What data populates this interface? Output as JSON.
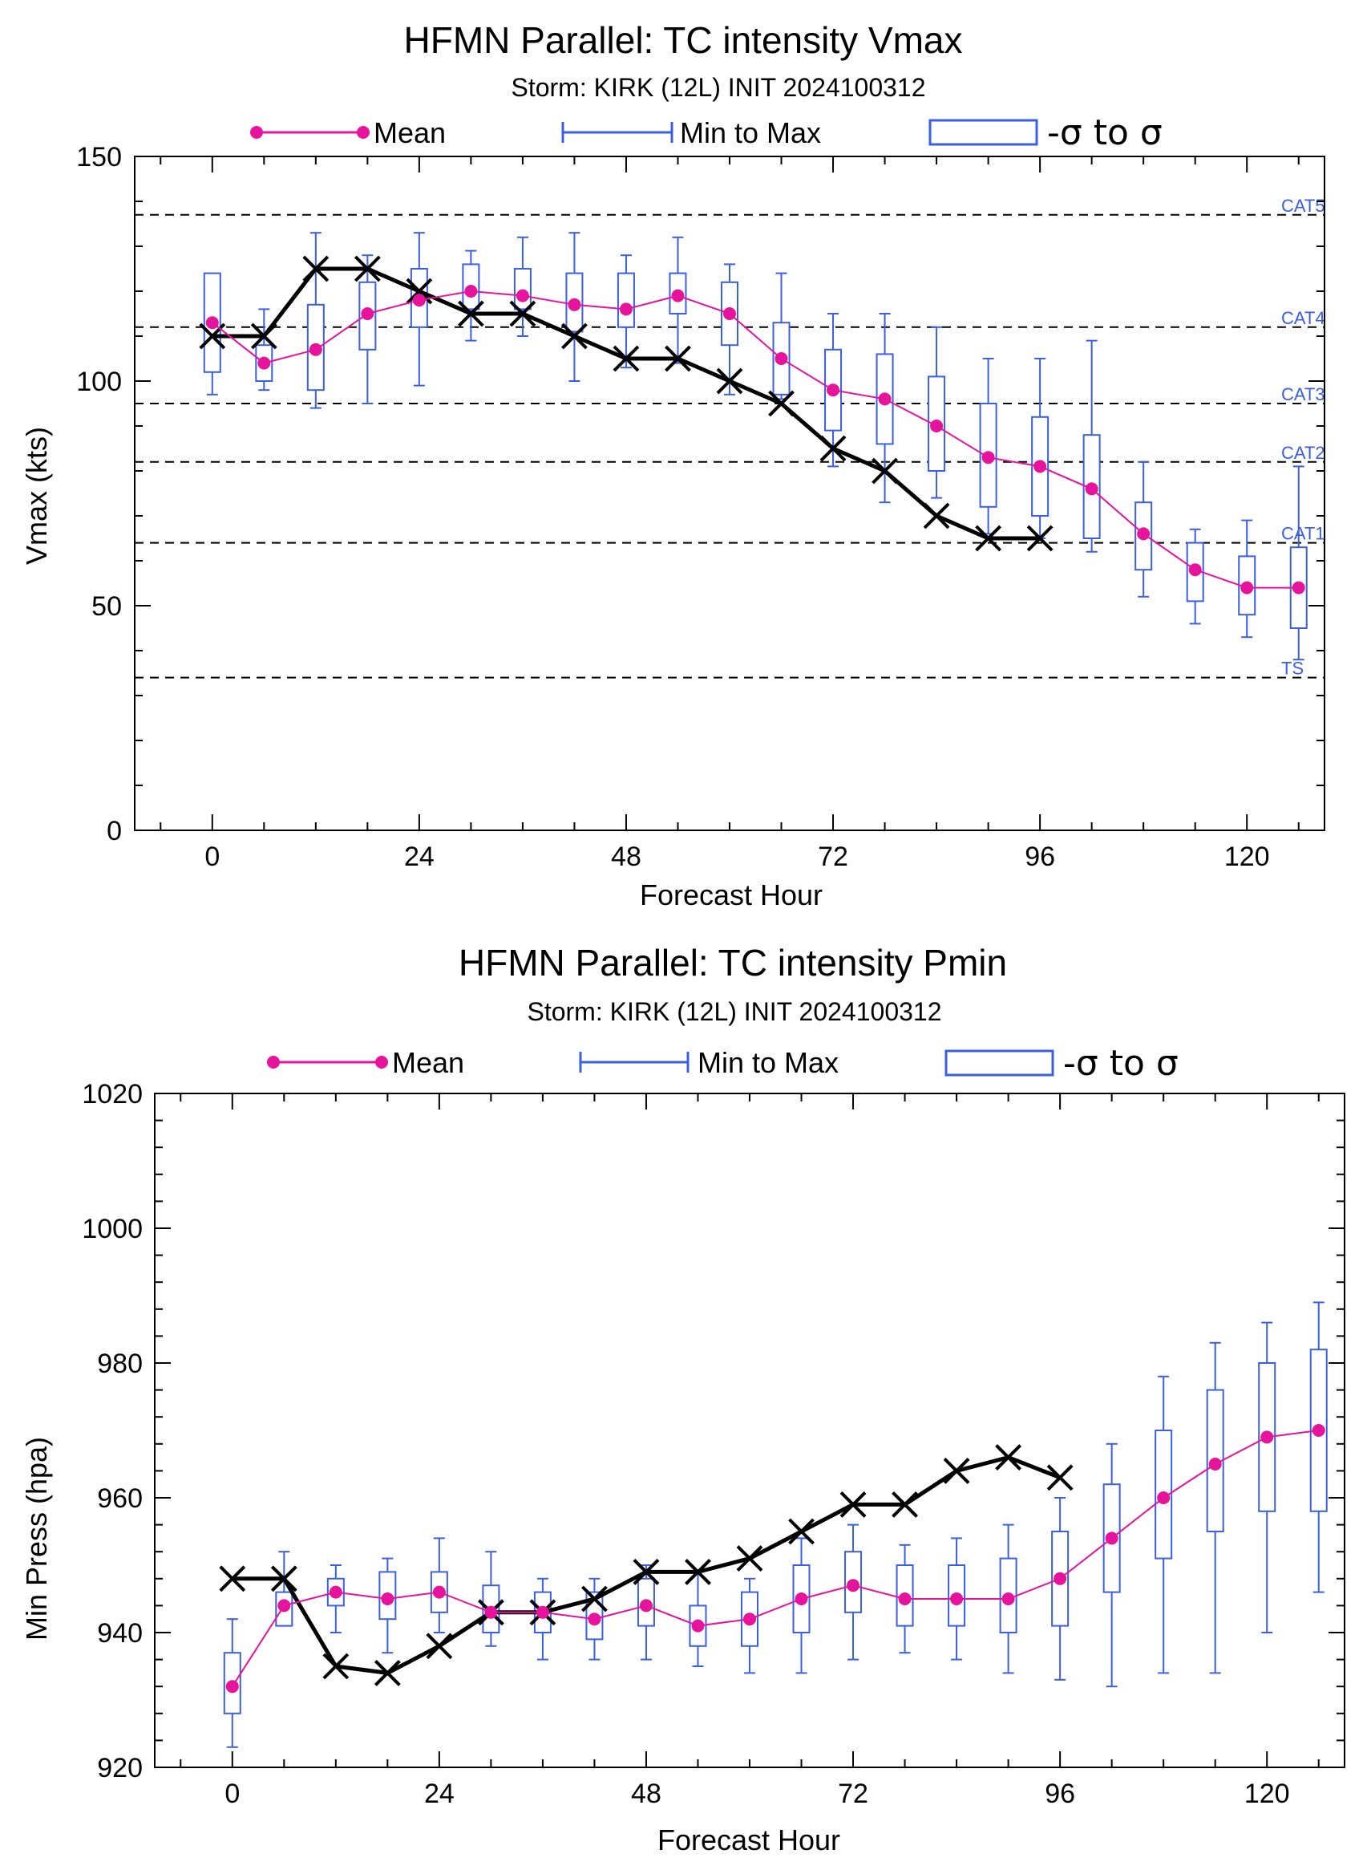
{
  "colors": {
    "mean": "#e6139c",
    "range": "#3a5fe5",
    "best_track": "#000000",
    "reference_lines": "#000000"
  },
  "legend": {
    "mean": "Mean",
    "range": "Min to Max",
    "sigma": "-σ to σ"
  },
  "chart_data": [
    {
      "type": "line",
      "title": "HFMN Parallel: TC intensity Vmax",
      "subtitle": "Storm: KIRK (12L) INIT 2024100312",
      "xlabel": "Forecast Hour",
      "ylabel": "Vmax (kts)",
      "xlim": [
        -9,
        129
      ],
      "ylim": [
        0,
        150
      ],
      "xticks": [
        0,
        24,
        48,
        72,
        96,
        120
      ],
      "yticks": [
        0,
        50,
        100,
        150
      ],
      "reference_lines": [
        {
          "label": "TS",
          "y": 34
        },
        {
          "label": "CAT1",
          "y": 64
        },
        {
          "label": "CAT2",
          "y": 82
        },
        {
          "label": "CAT3",
          "y": 95
        },
        {
          "label": "CAT4",
          "y": 112
        },
        {
          "label": "CAT5",
          "y": 137
        }
      ],
      "x": [
        0,
        6,
        12,
        18,
        24,
        30,
        36,
        42,
        48,
        54,
        60,
        66,
        72,
        78,
        84,
        90,
        96,
        102,
        108,
        114,
        120,
        126
      ],
      "series": [
        {
          "name": "Mean",
          "values": [
            113,
            104,
            107,
            115,
            118,
            120,
            119,
            117,
            116,
            119,
            115,
            105,
            98,
            96,
            90,
            83,
            81,
            76,
            66,
            58,
            54,
            54
          ]
        },
        {
          "name": "Min to Max",
          "min": [
            97,
            98,
            94,
            95,
            99,
            109,
            110,
            100,
            103,
            104,
            97,
            96,
            81,
            73,
            74,
            66,
            65,
            62,
            52,
            46,
            43,
            38
          ],
          "max": [
            122,
            116,
            133,
            128,
            133,
            129,
            132,
            133,
            128,
            132,
            126,
            124,
            115,
            115,
            112,
            105,
            105,
            109,
            82,
            67,
            69,
            81
          ]
        },
        {
          "name": "-σ to σ",
          "low": [
            102,
            100,
            98,
            107,
            112,
            116,
            116,
            111,
            112,
            115,
            108,
            97,
            89,
            86,
            80,
            72,
            70,
            65,
            58,
            51,
            48,
            45
          ],
          "high": [
            124,
            108,
            117,
            122,
            125,
            126,
            125,
            124,
            124,
            124,
            122,
            113,
            107,
            106,
            101,
            95,
            92,
            88,
            73,
            64,
            61,
            63
          ]
        }
      ],
      "best_track": {
        "x": [
          0,
          6,
          12,
          18,
          24,
          30,
          36,
          42,
          48,
          54,
          60,
          66,
          72,
          78,
          84,
          90,
          96
        ],
        "values": [
          110,
          110,
          125,
          125,
          120,
          115,
          115,
          110,
          105,
          105,
          100,
          95,
          85,
          80,
          70,
          65,
          65
        ]
      }
    },
    {
      "type": "line",
      "title": "HFMN Parallel: TC intensity Pmin",
      "subtitle": "Storm: KIRK (12L) INIT 2024100312",
      "xlabel": "Forecast Hour",
      "ylabel": "Min Press (hpa)",
      "xlim": [
        -9,
        129
      ],
      "ylim": [
        920,
        1020
      ],
      "xticks": [
        0,
        24,
        48,
        72,
        96,
        120
      ],
      "yticks": [
        920,
        940,
        960,
        980,
        1000,
        1020
      ],
      "x": [
        0,
        6,
        12,
        18,
        24,
        30,
        36,
        42,
        48,
        54,
        60,
        66,
        72,
        78,
        84,
        90,
        96,
        102,
        108,
        114,
        120,
        126
      ],
      "series": [
        {
          "name": "Mean",
          "values": [
            932,
            944,
            946,
            945,
            946,
            943,
            943,
            942,
            944,
            941,
            942,
            945,
            947,
            945,
            945,
            945,
            948,
            954,
            960,
            965,
            969,
            970
          ]
        },
        {
          "name": "Min to Max",
          "min": [
            923,
            941,
            940,
            937,
            940,
            938,
            936,
            936,
            936,
            935,
            934,
            934,
            936,
            937,
            936,
            934,
            933,
            932,
            934,
            934,
            940,
            946
          ],
          "max": [
            942,
            952,
            950,
            951,
            954,
            952,
            948,
            948,
            950,
            949,
            948,
            954,
            956,
            953,
            954,
            956,
            960,
            968,
            978,
            983,
            986,
            989
          ]
        },
        {
          "name": "-σ to σ",
          "low": [
            928,
            941,
            944,
            942,
            943,
            940,
            940,
            939,
            941,
            938,
            938,
            940,
            943,
            941,
            941,
            940,
            941,
            946,
            951,
            955,
            958,
            958
          ],
          "high": [
            937,
            946,
            948,
            949,
            949,
            947,
            946,
            946,
            948,
            944,
            946,
            950,
            952,
            950,
            950,
            951,
            955,
            962,
            970,
            976,
            980,
            982
          ]
        }
      ],
      "best_track": {
        "x": [
          0,
          6,
          12,
          18,
          24,
          30,
          36,
          42,
          48,
          54,
          60,
          66,
          72,
          78,
          84,
          90,
          96
        ],
        "values": [
          948,
          948,
          935,
          934,
          938,
          943,
          943,
          945,
          949,
          949,
          951,
          955,
          959,
          959,
          964,
          966,
          963
        ]
      }
    }
  ]
}
